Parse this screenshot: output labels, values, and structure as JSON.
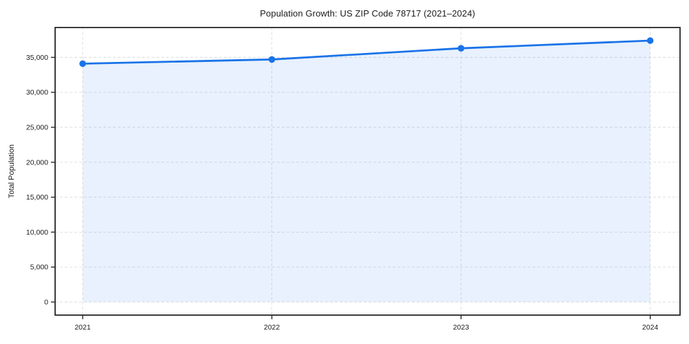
{
  "chart_data": {
    "type": "area",
    "title": "Population Growth: US ZIP Code 78717 (2021–2024)",
    "xlabel": "",
    "ylabel": "Total Population",
    "categories": [
      "2021",
      "2022",
      "2023",
      "2024"
    ],
    "series": [
      {
        "name": "Total Population",
        "values": [
          34100,
          34700,
          36300,
          37400
        ]
      }
    ],
    "ylim": [
      -1870,
      39270
    ],
    "yticks": [
      0,
      5000,
      10000,
      15000,
      20000,
      25000,
      30000,
      35000
    ],
    "ytick_labels": [
      "0",
      "5,000",
      "10,000",
      "15,000",
      "20,000",
      "25,000",
      "30,000",
      "35,000"
    ],
    "grid": true,
    "grid_style": "dashed",
    "legend": false,
    "line_color": "#1a73e8",
    "fill_color": "rgba(26,115,232,0.10)",
    "marker_color": "#1a73e8",
    "axis_color": "#262626",
    "grid_color": "#dcdcdc"
  }
}
